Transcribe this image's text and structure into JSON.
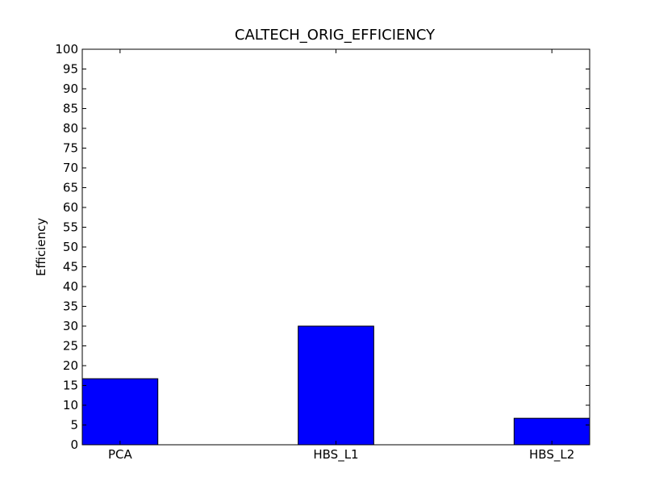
{
  "chart_data": {
    "type": "bar",
    "title": "CALTECH_ORIG_EFFICIENCY",
    "xlabel": "",
    "ylabel": "Efficiency",
    "categories": [
      "PCA",
      "HBS_L1",
      "HBS_L2"
    ],
    "values": [
      16.7,
      30,
      6.7
    ],
    "ylim": [
      0,
      100
    ],
    "yticks": [
      0,
      5,
      10,
      15,
      20,
      25,
      30,
      35,
      40,
      45,
      50,
      55,
      60,
      65,
      70,
      75,
      80,
      85,
      90,
      95,
      100
    ],
    "bar_color": "#0000ff",
    "grid": false,
    "legend": "none"
  }
}
